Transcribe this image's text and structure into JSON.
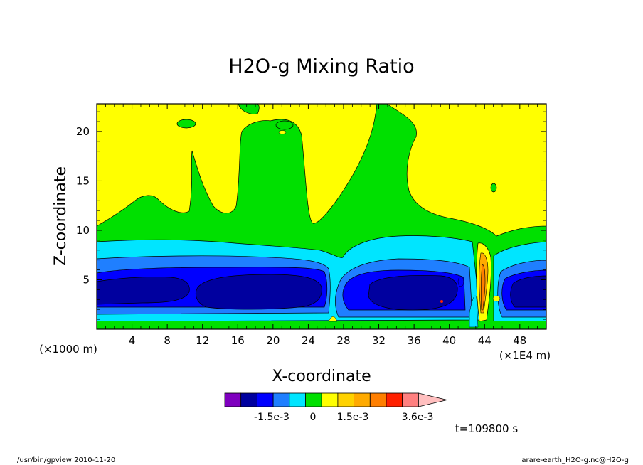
{
  "chart_data": {
    "type": "heatmap",
    "title": "H2O-g Mixing Ratio",
    "xlabel": "X-coordinate",
    "ylabel": "Z-coordinate",
    "x_unit_left": "(×1000 m)",
    "x_unit_right": "(×1E4 m)",
    "x_ticks": [
      "4",
      "8",
      "12",
      "16",
      "20",
      "24",
      "28",
      "32",
      "36",
      "40",
      "44",
      "48"
    ],
    "y_ticks": [
      "5",
      "10",
      "15",
      "20"
    ],
    "xlim": [
      0,
      51
    ],
    "ylim": [
      0,
      22.8
    ],
    "time_label": "t=109800 s",
    "colorbar": {
      "colors": [
        "#7f00bf",
        "#00009f",
        "#0000ff",
        "#1f7fff",
        "#00e5ff",
        "#00e000",
        "#ffff00",
        "#ffd200",
        "#ffaa00",
        "#ff7f00",
        "#ff2000",
        "#ff8080",
        "#ffbfbf"
      ],
      "labels": [
        "-1.5e-3",
        "0",
        "1.5e-3",
        "3.6e-3"
      ]
    },
    "layers": [
      {
        "name": "band-cyan-lower",
        "color": "#00e5ff"
      },
      {
        "name": "band-blue",
        "color": "#1f7fff"
      },
      {
        "name": "band-mid-blue",
        "color": "#0000ff"
      },
      {
        "name": "band-navy",
        "color": "#00009f"
      },
      {
        "name": "upper-yellow",
        "color": "#ffff00"
      }
    ]
  },
  "footer": {
    "left": "/usr/bin/gpview  2010-11-20",
    "right": "arare-earth_H2O-g.nc@H2O-g"
  }
}
